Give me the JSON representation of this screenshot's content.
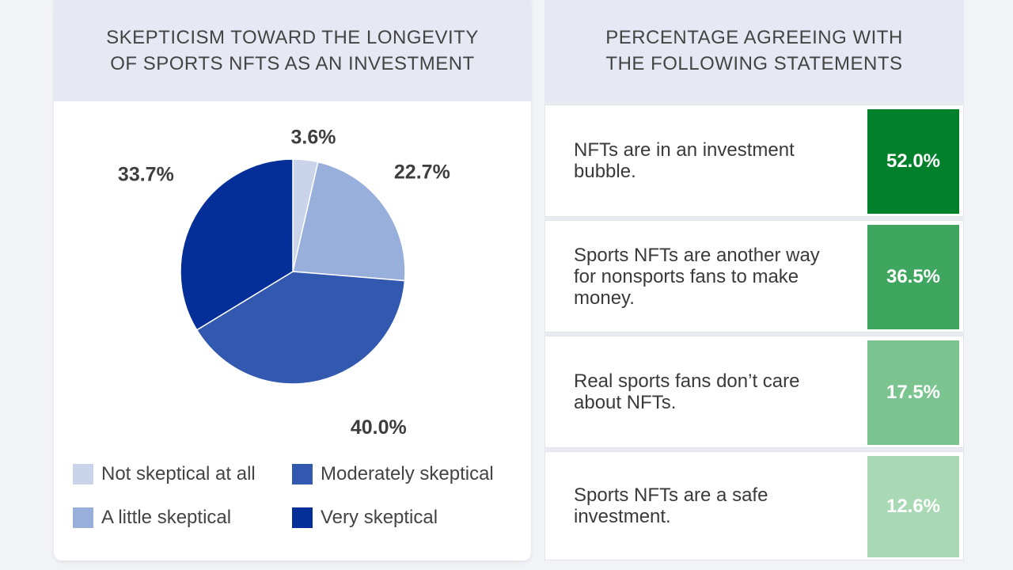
{
  "left": {
    "title_line1": "SKEPTICISM TOWARD THE LONGEVITY",
    "title_line2": "OF SPORTS NFTS AS AN INVESTMENT"
  },
  "right": {
    "title_line1": "PERCENTAGE AGREEING WITH",
    "title_line2": "THE FOLLOWING STATEMENTS"
  },
  "colors": {
    "not_skeptical": "#c9d3ea",
    "a_little": "#98aedb",
    "moderately": "#3358af",
    "very": "#052f98",
    "green_1": "#00802b",
    "green_2": "#3fa660",
    "green_3": "#7cc48f",
    "green_4": "#a8d8b4"
  },
  "chart_data": [
    {
      "type": "pie",
      "title": "SKEPTICISM TOWARD THE LONGEVITY OF SPORTS NFTS AS AN INVESTMENT",
      "categories": [
        "Not skeptical at all",
        "A little skeptical",
        "Moderately skeptical",
        "Very skeptical"
      ],
      "values": [
        3.6,
        22.7,
        40.0,
        33.7
      ],
      "labels": [
        "3.6%",
        "22.7%",
        "40.0%",
        "33.7%"
      ],
      "colors": [
        "#c9d3ea",
        "#98aedb",
        "#3358af",
        "#052f98"
      ],
      "legend": "bottom"
    },
    {
      "type": "table",
      "title": "PERCENTAGE AGREEING WITH THE FOLLOWING STATEMENTS",
      "rows": [
        {
          "statement": "NFTs are in an investment bubble.",
          "value": 52.0,
          "label": "52.0%",
          "color": "#00802b"
        },
        {
          "statement": "Sports NFTs are another way for nonsports fans to make money.",
          "value": 36.5,
          "label": "36.5%",
          "color": "#3fa660"
        },
        {
          "statement": "Real sports fans don’t care about NFTs.",
          "value": 17.5,
          "label": "17.5%",
          "color": "#7cc48f"
        },
        {
          "statement": "Sports NFTs are a safe investment.",
          "value": 12.6,
          "label": "12.6%",
          "color": "#a8d8b4"
        }
      ]
    }
  ]
}
